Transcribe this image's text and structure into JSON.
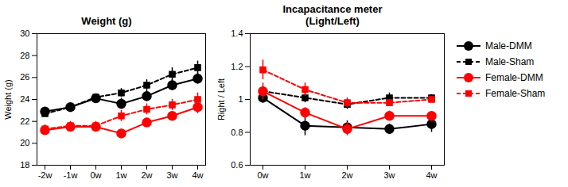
{
  "chart_data": [
    {
      "type": "line",
      "title": "Weight (g)",
      "y_label": "Weight (g)",
      "categories": [
        "-2w",
        "-1w",
        "0w",
        "1w",
        "2w",
        "3w",
        "4w"
      ],
      "ylim": [
        18,
        30
      ],
      "yticks": [
        18,
        20,
        22,
        24,
        26,
        28,
        30
      ],
      "grid": false,
      "series": [
        {
          "name": "Male-DMM",
          "color": "#000000",
          "marker": "circle",
          "line_style": "solid",
          "values": [
            22.9,
            23.3,
            24.1,
            23.6,
            24.3,
            25.3,
            25.9
          ],
          "errors": [
            0.3,
            0.3,
            0.3,
            0.5,
            0.5,
            0.5,
            0.5
          ]
        },
        {
          "name": "Male-Sham",
          "color": "#000000",
          "marker": "square",
          "line_style": "dashed",
          "values": [
            22.7,
            23.3,
            24.2,
            24.6,
            25.3,
            26.3,
            26.9
          ],
          "errors": [
            0.3,
            0.3,
            0.3,
            0.4,
            0.5,
            0.6,
            0.6
          ]
        },
        {
          "name": "Female-DMM",
          "color": "#ff0000",
          "marker": "circle",
          "line_style": "solid",
          "values": [
            21.2,
            21.5,
            21.5,
            20.9,
            21.9,
            22.5,
            23.3
          ],
          "errors": [
            0.4,
            0.4,
            0.4,
            0.4,
            0.4,
            0.4,
            0.6
          ]
        },
        {
          "name": "Female-Sham",
          "color": "#ff0000",
          "marker": "square",
          "line_style": "dashed",
          "values": [
            21.3,
            21.6,
            21.6,
            22.5,
            23.1,
            23.5,
            24.0
          ],
          "errors": [
            0.4,
            0.4,
            0.4,
            0.5,
            0.5,
            0.5,
            0.6
          ]
        }
      ]
    },
    {
      "type": "line",
      "title": "Incapacitance meter\n(Light/Left)",
      "y_label": "Right / Left",
      "categories": [
        "0w",
        "1w",
        "2w",
        "3w",
        "4w"
      ],
      "ylim": [
        0.6,
        1.4
      ],
      "yticks": [
        0.6,
        0.8,
        1.0,
        1.2,
        1.4
      ],
      "grid": false,
      "legend": "right",
      "series": [
        {
          "name": "Male-DMM",
          "color": "#000000",
          "marker": "circle",
          "line_style": "solid",
          "values": [
            1.01,
            0.84,
            0.83,
            0.82,
            0.85
          ],
          "errors": [
            0.03,
            0.06,
            0.04,
            0.03,
            0.05
          ]
        },
        {
          "name": "Male-Sham",
          "color": "#000000",
          "marker": "square",
          "line_style": "dashed",
          "values": [
            1.05,
            1.01,
            0.97,
            1.01,
            1.01
          ],
          "errors": [
            0.03,
            0.03,
            0.03,
            0.03,
            0.02
          ]
        },
        {
          "name": "Female-DMM",
          "color": "#ff0000",
          "marker": "circle",
          "line_style": "solid",
          "values": [
            1.05,
            0.92,
            0.82,
            0.9,
            0.9
          ],
          "errors": [
            0.05,
            0.03,
            0.04,
            0.03,
            0.02
          ]
        },
        {
          "name": "Female-Sham",
          "color": "#ff0000",
          "marker": "square",
          "line_style": "dashed",
          "values": [
            1.18,
            1.06,
            0.98,
            0.98,
            1.0
          ],
          "errors": [
            0.06,
            0.04,
            0.03,
            0.02,
            0.02
          ]
        }
      ]
    }
  ]
}
